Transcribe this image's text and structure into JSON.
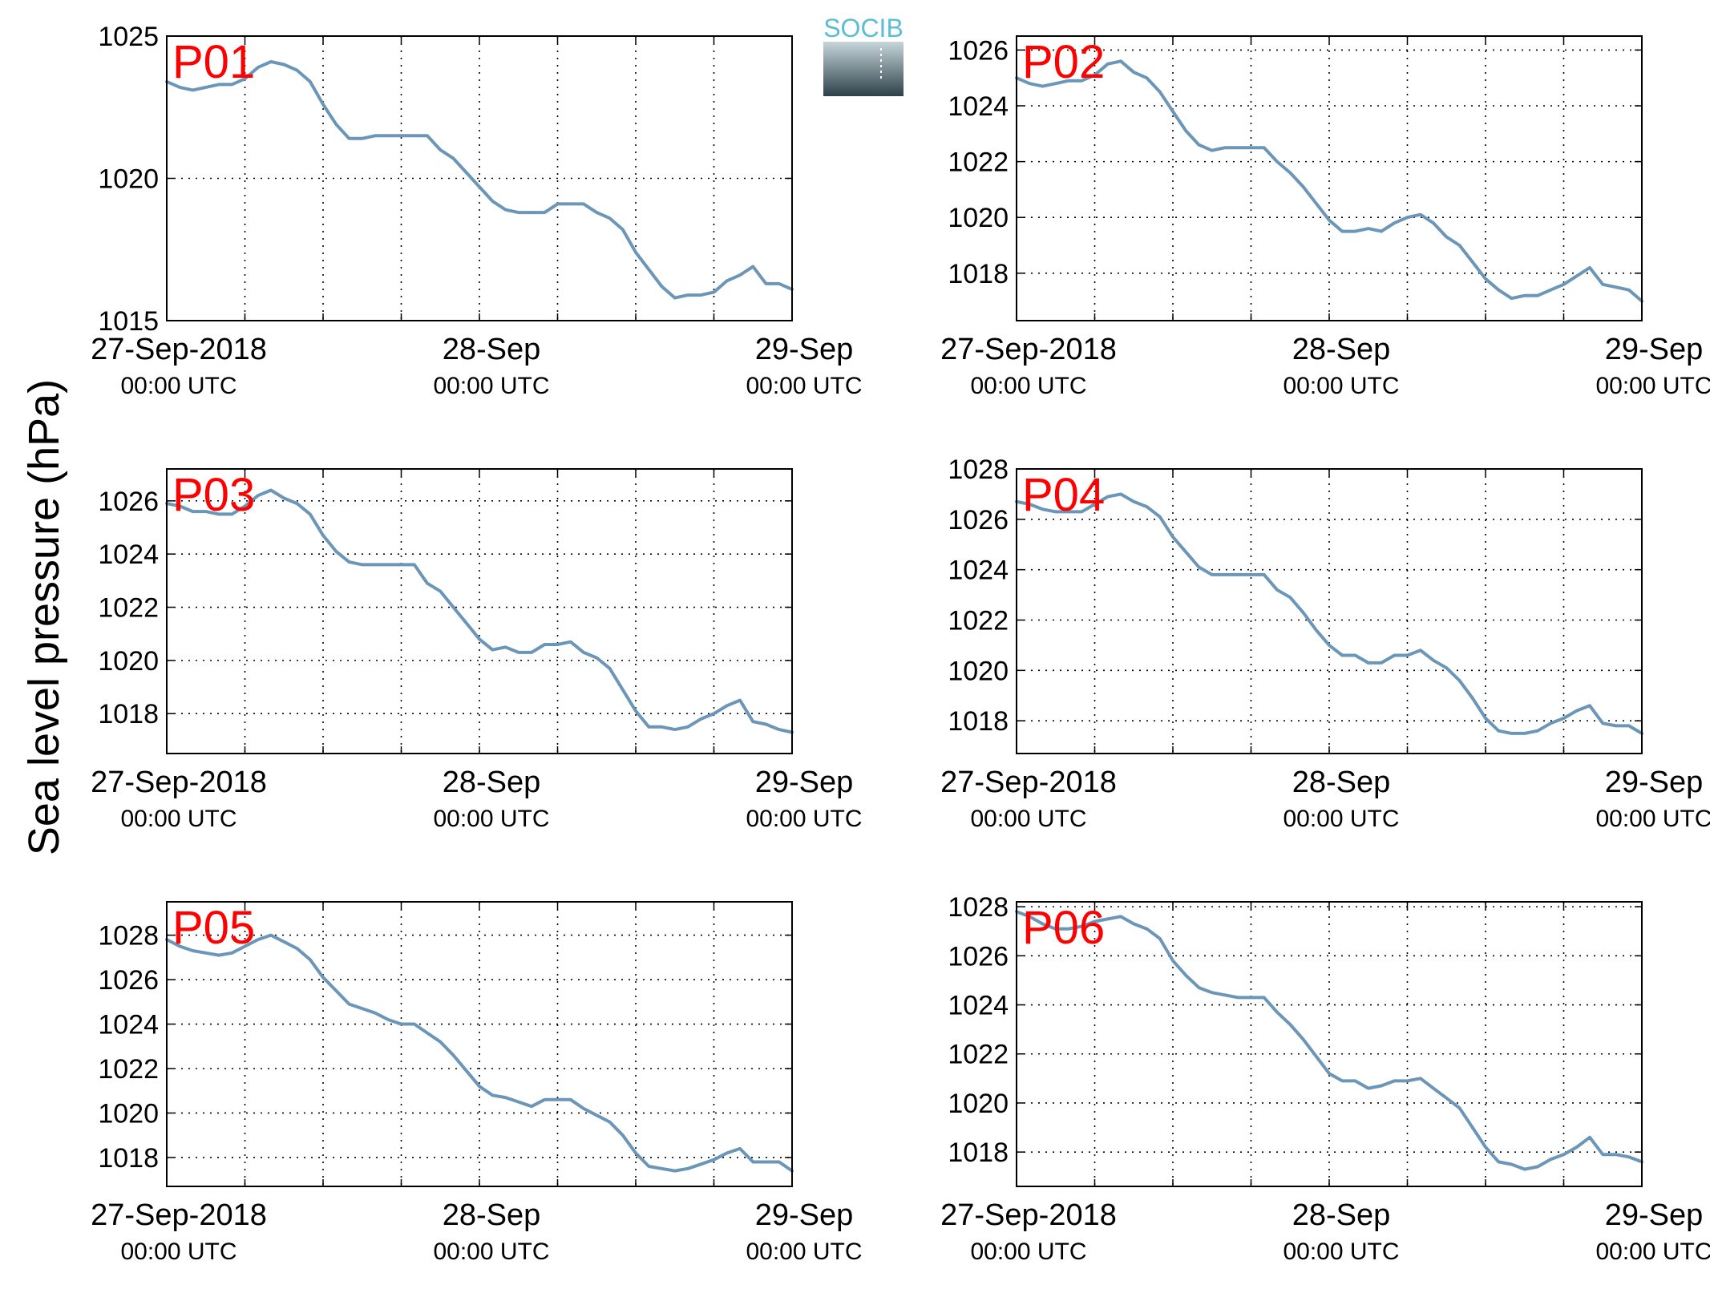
{
  "ylabel": "Sea level pressure (hPa)",
  "logo_text": "SOCIB",
  "colors": {
    "line": "#6b96b8",
    "panel_label": "#ff0000",
    "logo_text": "#5bbdd6",
    "logo_top": "#c6d6db",
    "logo_bottom": "#2e4049"
  },
  "x_ticks": [
    {
      "date": "27-Sep-2018",
      "time": "00:00 UTC"
    },
    {
      "date": "28-Sep",
      "time": "00:00 UTC"
    },
    {
      "date": "29-Sep",
      "time": "00:00 UTC"
    }
  ],
  "chart_data": [
    {
      "type": "line",
      "label": "P01",
      "x_unit": "hours since 27-Sep-2018 00:00 UTC",
      "xlim": [
        0,
        48
      ],
      "ylim": [
        1015,
        1025
      ],
      "yticks": [
        1015,
        1020,
        1025
      ],
      "x": [
        0,
        1,
        2,
        3,
        4,
        5,
        6,
        7,
        8,
        9,
        10,
        11,
        12,
        13,
        14,
        15,
        16,
        17,
        18,
        19,
        20,
        21,
        22,
        23,
        24,
        25,
        26,
        27,
        28,
        29,
        30,
        31,
        32,
        33,
        34,
        35,
        36,
        37,
        38,
        39,
        40,
        41,
        42,
        43,
        44,
        45,
        46,
        47,
        48
      ],
      "y": [
        1023.4,
        1023.2,
        1023.1,
        1023.2,
        1023.3,
        1023.3,
        1023.5,
        1023.9,
        1024.1,
        1024.0,
        1023.8,
        1023.4,
        1022.6,
        1021.9,
        1021.4,
        1021.4,
        1021.5,
        1021.5,
        1021.5,
        1021.5,
        1021.5,
        1021.0,
        1020.7,
        1020.2,
        1019.7,
        1019.2,
        1018.9,
        1018.8,
        1018.8,
        1018.8,
        1019.1,
        1019.1,
        1019.1,
        1018.8,
        1018.6,
        1018.2,
        1017.4,
        1016.8,
        1016.2,
        1015.8,
        1015.9,
        1015.9,
        1016.0,
        1016.4,
        1016.6,
        1016.9,
        1016.3,
        1016.3,
        1016.1
      ]
    },
    {
      "type": "line",
      "label": "P02",
      "x_unit": "hours since 27-Sep-2018 00:00 UTC",
      "xlim": [
        0,
        48
      ],
      "ylim": [
        1016.3,
        1026.5
      ],
      "yticks": [
        1018,
        1020,
        1022,
        1024,
        1026
      ],
      "x": [
        0,
        1,
        2,
        3,
        4,
        5,
        6,
        7,
        8,
        9,
        10,
        11,
        12,
        13,
        14,
        15,
        16,
        17,
        18,
        19,
        20,
        21,
        22,
        23,
        24,
        25,
        26,
        27,
        28,
        29,
        30,
        31,
        32,
        33,
        34,
        35,
        36,
        37,
        38,
        39,
        40,
        41,
        42,
        43,
        44,
        45,
        46,
        47,
        48
      ],
      "y": [
        1025.0,
        1024.8,
        1024.7,
        1024.8,
        1024.9,
        1024.9,
        1025.1,
        1025.5,
        1025.6,
        1025.2,
        1025.0,
        1024.5,
        1023.8,
        1023.1,
        1022.6,
        1022.4,
        1022.5,
        1022.5,
        1022.5,
        1022.5,
        1022.0,
        1021.6,
        1021.1,
        1020.5,
        1019.9,
        1019.5,
        1019.5,
        1019.6,
        1019.5,
        1019.8,
        1020.0,
        1020.1,
        1019.8,
        1019.3,
        1019.0,
        1018.4,
        1017.8,
        1017.4,
        1017.1,
        1017.2,
        1017.2,
        1017.4,
        1017.6,
        1017.9,
        1018.2,
        1017.6,
        1017.5,
        1017.4,
        1017.0
      ]
    },
    {
      "type": "line",
      "label": "P03",
      "x_unit": "hours since 27-Sep-2018 00:00 UTC",
      "xlim": [
        0,
        48
      ],
      "ylim": [
        1016.5,
        1027.2
      ],
      "yticks": [
        1018,
        1020,
        1022,
        1024,
        1026
      ],
      "x": [
        0,
        1,
        2,
        3,
        4,
        5,
        6,
        7,
        8,
        9,
        10,
        11,
        12,
        13,
        14,
        15,
        16,
        17,
        18,
        19,
        20,
        21,
        22,
        23,
        24,
        25,
        26,
        27,
        28,
        29,
        30,
        31,
        32,
        33,
        34,
        35,
        36,
        37,
        38,
        39,
        40,
        41,
        42,
        43,
        44,
        45,
        46,
        47,
        48
      ],
      "y": [
        1025.9,
        1025.8,
        1025.6,
        1025.6,
        1025.5,
        1025.5,
        1025.8,
        1026.2,
        1026.4,
        1026.1,
        1025.9,
        1025.5,
        1024.7,
        1024.1,
        1023.7,
        1023.6,
        1023.6,
        1023.6,
        1023.6,
        1023.6,
        1022.9,
        1022.6,
        1022.0,
        1021.4,
        1020.8,
        1020.4,
        1020.5,
        1020.3,
        1020.3,
        1020.6,
        1020.6,
        1020.7,
        1020.3,
        1020.1,
        1019.7,
        1018.9,
        1018.1,
        1017.5,
        1017.5,
        1017.4,
        1017.5,
        1017.8,
        1018.0,
        1018.3,
        1018.5,
        1017.7,
        1017.6,
        1017.4,
        1017.3
      ]
    },
    {
      "type": "line",
      "label": "P04",
      "x_unit": "hours since 27-Sep-2018 00:00 UTC",
      "xlim": [
        0,
        48
      ],
      "ylim": [
        1016.7,
        1028.0
      ],
      "yticks": [
        1018,
        1020,
        1022,
        1024,
        1026,
        1028
      ],
      "x": [
        0,
        1,
        2,
        3,
        4,
        5,
        6,
        7,
        8,
        9,
        10,
        11,
        12,
        13,
        14,
        15,
        16,
        17,
        18,
        19,
        20,
        21,
        22,
        23,
        24,
        25,
        26,
        27,
        28,
        29,
        30,
        31,
        32,
        33,
        34,
        35,
        36,
        37,
        38,
        39,
        40,
        41,
        42,
        43,
        44,
        45,
        46,
        47,
        48
      ],
      "y": [
        1026.7,
        1026.6,
        1026.4,
        1026.3,
        1026.3,
        1026.3,
        1026.6,
        1026.9,
        1027.0,
        1026.7,
        1026.5,
        1026.1,
        1025.3,
        1024.7,
        1024.1,
        1023.8,
        1023.8,
        1023.8,
        1023.8,
        1023.8,
        1023.2,
        1022.9,
        1022.3,
        1021.6,
        1021.0,
        1020.6,
        1020.6,
        1020.3,
        1020.3,
        1020.6,
        1020.6,
        1020.8,
        1020.4,
        1020.1,
        1019.6,
        1018.9,
        1018.1,
        1017.6,
        1017.5,
        1017.5,
        1017.6,
        1017.9,
        1018.1,
        1018.4,
        1018.6,
        1017.9,
        1017.8,
        1017.8,
        1017.5
      ]
    },
    {
      "type": "line",
      "label": "P05",
      "x_unit": "hours since 27-Sep-2018 00:00 UTC",
      "xlim": [
        0,
        48
      ],
      "ylim": [
        1016.7,
        1029.5
      ],
      "yticks": [
        1018,
        1020,
        1022,
        1024,
        1026,
        1028
      ],
      "x": [
        0,
        1,
        2,
        3,
        4,
        5,
        6,
        7,
        8,
        9,
        10,
        11,
        12,
        13,
        14,
        15,
        16,
        17,
        18,
        19,
        20,
        21,
        22,
        23,
        24,
        25,
        26,
        27,
        28,
        29,
        30,
        31,
        32,
        33,
        34,
        35,
        36,
        37,
        38,
        39,
        40,
        41,
        42,
        43,
        44,
        45,
        46,
        47,
        48
      ],
      "y": [
        1027.8,
        1027.5,
        1027.3,
        1027.2,
        1027.1,
        1027.2,
        1027.5,
        1027.8,
        1028.0,
        1027.7,
        1027.4,
        1026.9,
        1026.1,
        1025.5,
        1024.9,
        1024.7,
        1024.5,
        1024.2,
        1024.0,
        1024.0,
        1023.6,
        1023.2,
        1022.6,
        1021.9,
        1021.2,
        1020.8,
        1020.7,
        1020.5,
        1020.3,
        1020.6,
        1020.6,
        1020.6,
        1020.2,
        1019.9,
        1019.6,
        1019.0,
        1018.2,
        1017.6,
        1017.5,
        1017.4,
        1017.5,
        1017.7,
        1017.9,
        1018.2,
        1018.4,
        1017.8,
        1017.8,
        1017.8,
        1017.4
      ]
    },
    {
      "type": "line",
      "label": "P06",
      "x_unit": "hours since 27-Sep-2018 00:00 UTC",
      "xlim": [
        0,
        48
      ],
      "ylim": [
        1016.6,
        1028.2
      ],
      "yticks": [
        1018,
        1020,
        1022,
        1024,
        1026,
        1028
      ],
      "x": [
        0,
        1,
        2,
        3,
        4,
        5,
        6,
        7,
        8,
        9,
        10,
        11,
        12,
        13,
        14,
        15,
        16,
        17,
        18,
        19,
        20,
        21,
        22,
        23,
        24,
        25,
        26,
        27,
        28,
        29,
        30,
        31,
        32,
        33,
        34,
        35,
        36,
        37,
        38,
        39,
        40,
        41,
        42,
        43,
        44,
        45,
        46,
        47,
        48
      ],
      "y": [
        1027.8,
        1027.6,
        1027.3,
        1027.1,
        1027.1,
        1027.2,
        1027.4,
        1027.5,
        1027.6,
        1027.3,
        1027.1,
        1026.7,
        1025.8,
        1025.2,
        1024.7,
        1024.5,
        1024.4,
        1024.3,
        1024.3,
        1024.3,
        1023.7,
        1023.2,
        1022.6,
        1021.9,
        1021.2,
        1020.9,
        1020.9,
        1020.6,
        1020.7,
        1020.9,
        1020.9,
        1021.0,
        1020.6,
        1020.2,
        1019.8,
        1019.0,
        1018.2,
        1017.6,
        1017.5,
        1017.3,
        1017.4,
        1017.7,
        1017.9,
        1018.2,
        1018.6,
        1017.9,
        1017.9,
        1017.8,
        1017.6
      ]
    }
  ]
}
